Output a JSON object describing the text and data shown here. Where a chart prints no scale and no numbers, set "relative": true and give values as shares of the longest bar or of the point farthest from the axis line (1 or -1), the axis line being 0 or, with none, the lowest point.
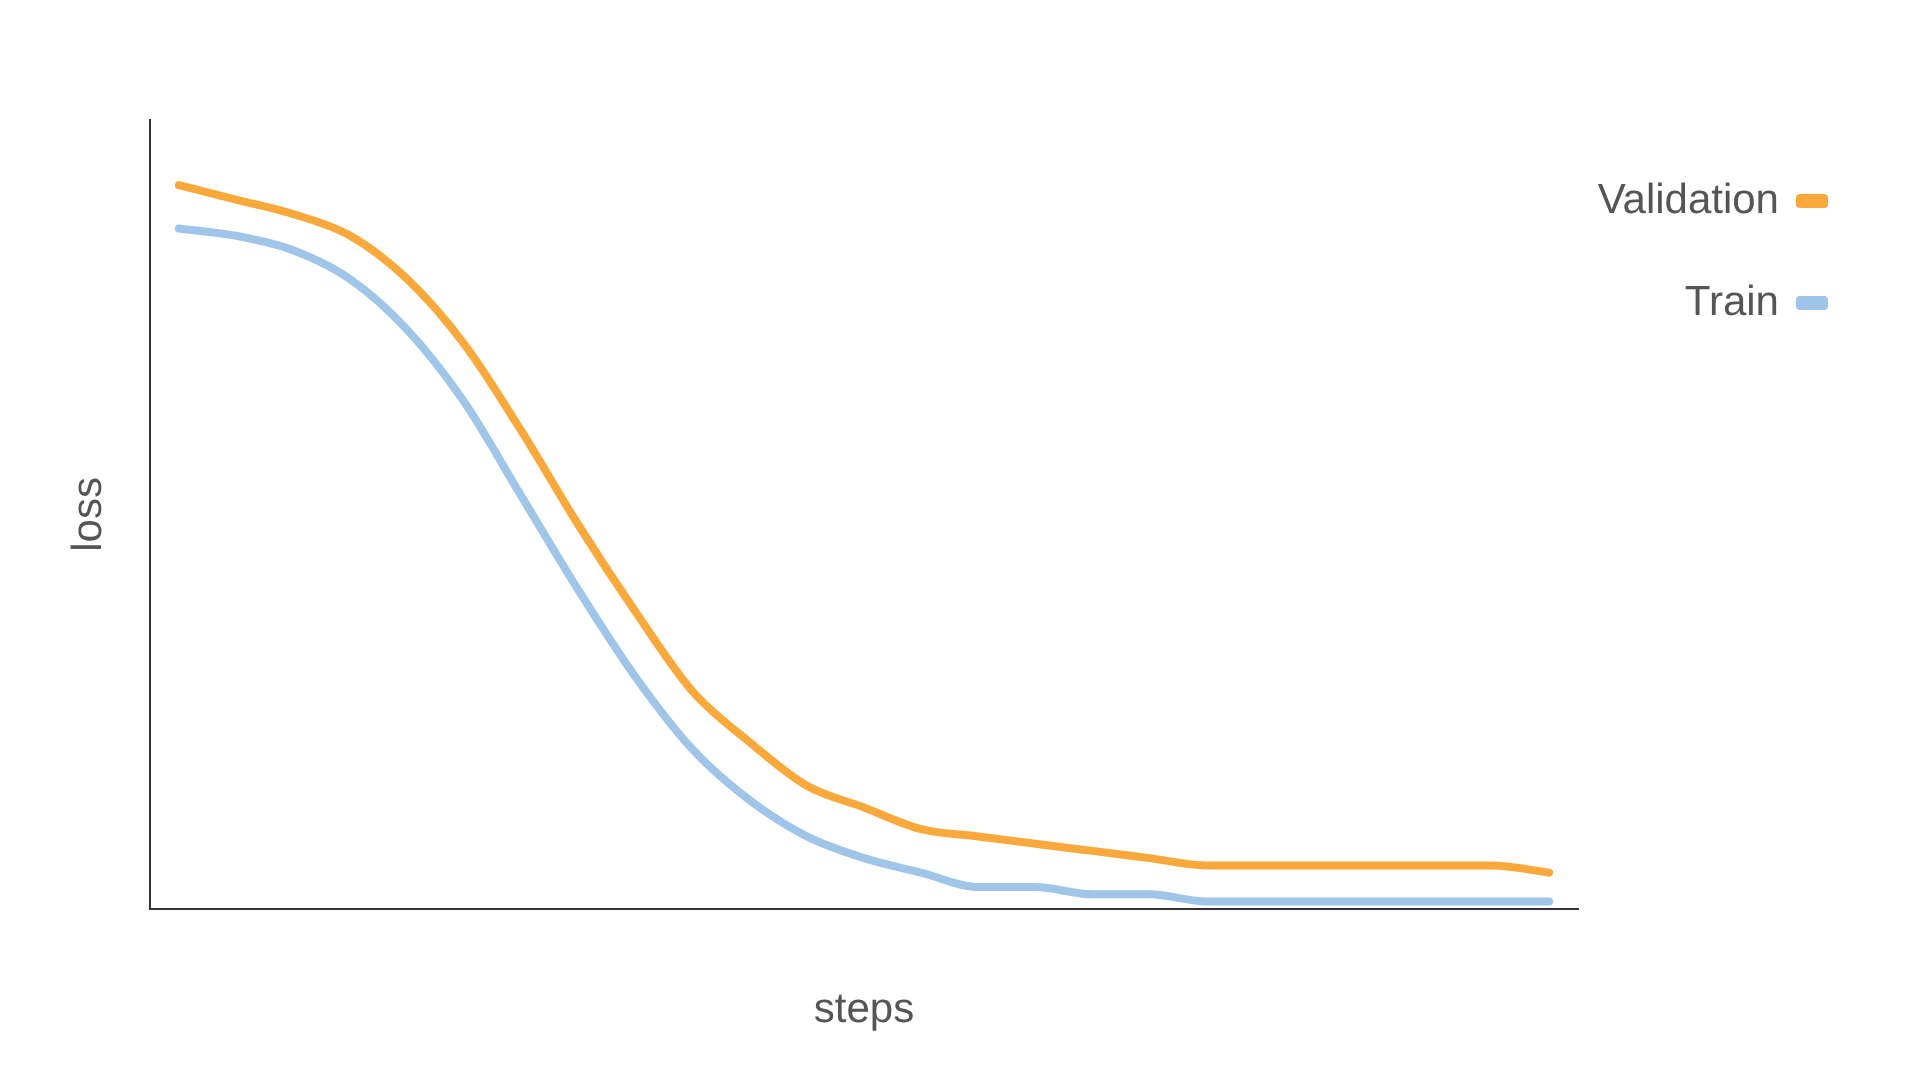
{
  "chart_data": {
    "type": "line",
    "relative": true,
    "xlabel": "steps",
    "ylabel": "loss",
    "legend": "top right",
    "grid": false,
    "marker": "none",
    "line_style": "solid",
    "categories": [
      null,
      null,
      null,
      null,
      null,
      null,
      null,
      null,
      null,
      null,
      null,
      null,
      null,
      null,
      null,
      null,
      null,
      null,
      null,
      null,
      null,
      null,
      null,
      null,
      null
    ],
    "series": [
      {
        "name": "Validation",
        "color": "#f9a93b",
        "values": [
          1.0,
          0.98,
          0.96,
          0.93,
          0.87,
          0.78,
          0.66,
          0.53,
          0.41,
          0.3,
          0.23,
          0.17,
          0.14,
          0.11,
          0.1,
          0.09,
          0.08,
          0.07,
          0.06,
          0.06,
          0.06,
          0.06,
          0.06,
          0.06,
          0.05
        ]
      },
      {
        "name": "Train",
        "color": "#9fc5e8",
        "values": [
          0.94,
          0.93,
          0.91,
          0.87,
          0.8,
          0.7,
          0.57,
          0.44,
          0.32,
          0.22,
          0.15,
          0.1,
          0.07,
          0.05,
          0.03,
          0.03,
          0.02,
          0.02,
          0.01,
          0.01,
          0.01,
          0.01,
          0.01,
          0.01,
          0.01
        ]
      }
    ]
  }
}
